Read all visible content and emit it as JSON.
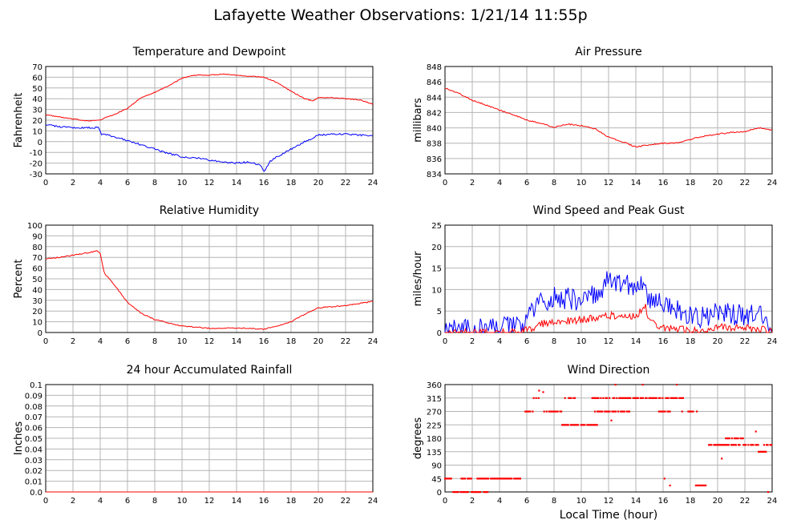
{
  "page_title": "Lafayette Weather Observations: 1/21/14 11:55p",
  "xlabel_common": "Local Time (hour)",
  "colors": {
    "red": "#ff0000",
    "blue": "#0000ff",
    "grid": "#b4b4b4",
    "frame": "#000000"
  },
  "chart_data": [
    {
      "id": "temperature",
      "type": "line",
      "title": "Temperature and Dewpoint",
      "xlabel": "",
      "ylabel": "Fahrenheit",
      "xlim": [
        0,
        24
      ],
      "ylim": [
        -30,
        70
      ],
      "xticks": [
        0,
        2,
        4,
        6,
        8,
        10,
        12,
        14,
        16,
        18,
        20,
        22,
        24
      ],
      "yticks": [
        -30,
        -20,
        -10,
        0,
        10,
        20,
        30,
        40,
        50,
        60,
        70
      ],
      "grid": true,
      "series": [
        {
          "color": "#ff0000",
          "noise": 0.4,
          "points": [
            [
              0,
              25
            ],
            [
              1,
              23
            ],
            [
              2,
              21
            ],
            [
              3,
              19.5
            ],
            [
              4,
              20
            ],
            [
              4.5,
              23
            ],
            [
              5,
              25
            ],
            [
              6,
              31
            ],
            [
              7,
              41
            ],
            [
              8,
              46
            ],
            [
              9,
              52
            ],
            [
              10,
              59
            ],
            [
              11,
              62
            ],
            [
              12,
              62
            ],
            [
              13,
              63
            ],
            [
              14,
              62
            ],
            [
              15,
              61
            ],
            [
              16,
              60
            ],
            [
              17,
              55
            ],
            [
              18,
              47
            ],
            [
              19,
              40
            ],
            [
              19.6,
              38
            ],
            [
              20,
              41
            ],
            [
              21,
              41
            ],
            [
              22,
              40
            ],
            [
              23,
              39
            ],
            [
              24,
              35
            ]
          ]
        },
        {
          "color": "#0000ff",
          "noise": 0.8,
          "points": [
            [
              0,
              16
            ],
            [
              1,
              14
            ],
            [
              2,
              13
            ],
            [
              3,
              13
            ],
            [
              3.9,
              13
            ],
            [
              4.1,
              7
            ],
            [
              5,
              5
            ],
            [
              6,
              1
            ],
            [
              7,
              -3
            ],
            [
              8,
              -7
            ],
            [
              9,
              -11
            ],
            [
              10,
              -14
            ],
            [
              11,
              -15
            ],
            [
              12,
              -17
            ],
            [
              13,
              -19
            ],
            [
              14,
              -20
            ],
            [
              15,
              -19
            ],
            [
              15.8,
              -22
            ],
            [
              16,
              -28
            ],
            [
              16.5,
              -18
            ],
            [
              17,
              -14
            ],
            [
              18,
              -7
            ],
            [
              19,
              0
            ],
            [
              20,
              6
            ],
            [
              21,
              7
            ],
            [
              22,
              7
            ],
            [
              23,
              6
            ],
            [
              24,
              6
            ]
          ]
        }
      ]
    },
    {
      "id": "pressure",
      "type": "line",
      "title": "Air Pressure",
      "xlabel": "",
      "ylabel": "millibars",
      "xlim": [
        0,
        24
      ],
      "ylim": [
        834,
        848
      ],
      "xticks": [
        0,
        2,
        4,
        6,
        8,
        10,
        12,
        14,
        16,
        18,
        20,
        22,
        24
      ],
      "yticks": [
        834,
        836,
        838,
        840,
        842,
        844,
        846,
        848
      ],
      "grid": true,
      "series": [
        {
          "color": "#ff0000",
          "noise": 0.08,
          "points": [
            [
              0,
              845.2
            ],
            [
              1,
              844.5
            ],
            [
              2,
              843.6
            ],
            [
              3,
              843.0
            ],
            [
              4,
              842.3
            ],
            [
              5,
              841.7
            ],
            [
              6,
              841.0
            ],
            [
              7,
              840.6
            ],
            [
              8,
              840.1
            ],
            [
              9,
              840.5
            ],
            [
              10,
              840.3
            ],
            [
              11,
              839.9
            ],
            [
              12,
              838.8
            ],
            [
              13,
              838.2
            ],
            [
              14,
              837.5
            ],
            [
              15,
              837.8
            ],
            [
              16,
              838.0
            ],
            [
              17,
              838.0
            ],
            [
              18,
              838.5
            ],
            [
              19,
              838.9
            ],
            [
              20,
              839.2
            ],
            [
              21,
              839.4
            ],
            [
              22,
              839.5
            ],
            [
              23,
              840.0
            ],
            [
              24,
              839.7
            ]
          ]
        }
      ]
    },
    {
      "id": "humidity",
      "type": "line",
      "title": "Relative Humidity",
      "xlabel": "",
      "ylabel": "Percent",
      "xlim": [
        0,
        24
      ],
      "ylim": [
        0,
        100
      ],
      "xticks": [
        0,
        2,
        4,
        6,
        8,
        10,
        12,
        14,
        16,
        18,
        20,
        22,
        24
      ],
      "yticks": [
        0,
        10,
        20,
        30,
        40,
        50,
        60,
        70,
        80,
        90,
        100
      ],
      "grid": true,
      "series": [
        {
          "color": "#ff0000",
          "noise": 0.5,
          "points": [
            [
              0,
              69
            ],
            [
              1,
              70
            ],
            [
              2,
              72
            ],
            [
              3,
              74
            ],
            [
              3.8,
              76
            ],
            [
              4,
              74
            ],
            [
              4.3,
              55
            ],
            [
              5,
              45
            ],
            [
              6,
              28
            ],
            [
              7,
              18
            ],
            [
              8,
              12
            ],
            [
              9,
              9
            ],
            [
              10,
              6
            ],
            [
              11,
              5
            ],
            [
              12,
              4
            ],
            [
              13,
              4
            ],
            [
              14,
              4
            ],
            [
              15,
              4
            ],
            [
              16,
              3
            ],
            [
              17,
              6
            ],
            [
              18,
              10
            ],
            [
              19,
              17
            ],
            [
              20,
              23
            ],
            [
              21,
              24
            ],
            [
              22,
              25
            ],
            [
              23,
              27
            ],
            [
              24,
              29
            ]
          ]
        }
      ]
    },
    {
      "id": "wind",
      "type": "line",
      "title": "Wind Speed and Peak Gust",
      "xlabel": "",
      "ylabel": "miles/hour",
      "xlim": [
        0,
        24
      ],
      "ylim": [
        0,
        25
      ],
      "xticks": [
        0,
        2,
        4,
        6,
        8,
        10,
        12,
        14,
        16,
        18,
        20,
        22,
        24
      ],
      "yticks": [
        0,
        5,
        10,
        15,
        20,
        25
      ],
      "grid": true,
      "series": [
        {
          "color": "#0000ff",
          "noise": 2.6,
          "points": [
            [
              0,
              0.5
            ],
            [
              2,
              0.5
            ],
            [
              4,
              1
            ],
            [
              5,
              1.5
            ],
            [
              6,
              2
            ],
            [
              6.3,
              5
            ],
            [
              7,
              7
            ],
            [
              8,
              8
            ],
            [
              9,
              8
            ],
            [
              10,
              7
            ],
            [
              11,
              9
            ],
            [
              11.8,
              11
            ],
            [
              12,
              13
            ],
            [
              13,
              11
            ],
            [
              14,
              11
            ],
            [
              14.8,
              10
            ],
            [
              15,
              7
            ],
            [
              16,
              7
            ],
            [
              17,
              5
            ],
            [
              18,
              4
            ],
            [
              19,
              3.5
            ],
            [
              20,
              5.5
            ],
            [
              21,
              4
            ],
            [
              22,
              4
            ],
            [
              23,
              4
            ],
            [
              24,
              2
            ]
          ]
        },
        {
          "color": "#ff0000",
          "noise": 0.9,
          "points": [
            [
              0,
              0
            ],
            [
              5.5,
              0
            ],
            [
              6.3,
              1
            ],
            [
              7,
              2
            ],
            [
              8,
              2.5
            ],
            [
              10,
              3
            ],
            [
              11,
              3.5
            ],
            [
              12,
              4
            ],
            [
              13,
              4
            ],
            [
              14,
              4
            ],
            [
              14.7,
              6
            ],
            [
              15,
              2.5
            ],
            [
              16,
              1
            ],
            [
              17,
              1
            ],
            [
              18,
              0.5
            ],
            [
              19,
              0.5
            ],
            [
              20,
              1.5
            ],
            [
              21,
              1
            ],
            [
              22,
              1
            ],
            [
              23,
              1
            ],
            [
              24,
              0
            ]
          ]
        }
      ]
    },
    {
      "id": "rainfall",
      "type": "line",
      "title": "24 hour Accumulated Rainfall",
      "xlabel": "",
      "ylabel": "Inches",
      "xlim": [
        0,
        24
      ],
      "ylim": [
        0,
        0.1
      ],
      "xticks": [
        0,
        2,
        4,
        6,
        8,
        10,
        12,
        14,
        16,
        18,
        20,
        22,
        24
      ],
      "yticks": [
        0.0,
        0.01,
        0.02,
        0.03,
        0.04,
        0.05,
        0.06,
        0.07,
        0.08,
        0.09,
        0.1
      ],
      "ytick_labels": [
        "0.0",
        "0.01",
        "0.02",
        "0.03",
        "0.04",
        "0.05",
        "0.06",
        "0.07",
        "0.08",
        "0.09",
        "0.1"
      ],
      "grid": true,
      "series": [
        {
          "color": "#ff0000",
          "noise": 0,
          "points": [
            [
              0,
              0
            ],
            [
              24,
              0
            ]
          ]
        }
      ]
    },
    {
      "id": "direction",
      "type": "scatter",
      "title": "Wind Direction",
      "xlabel": "Local Time (hour)",
      "ylabel": "degrees",
      "xlim": [
        0,
        24
      ],
      "ylim": [
        0,
        360
      ],
      "xticks": [
        0,
        2,
        4,
        6,
        8,
        10,
        12,
        14,
        16,
        18,
        20,
        22,
        24
      ],
      "yticks": [
        0,
        45,
        90,
        135,
        180,
        225,
        270,
        315,
        360
      ],
      "grid": true,
      "series": [
        {
          "color": "#ff0000",
          "segments": [
            [
              0.0,
              0.6,
              45
            ],
            [
              0.6,
              3.2,
              0
            ],
            [
              1.2,
              5.6,
              45
            ],
            [
              5.8,
              6.5,
              270
            ],
            [
              6.5,
              7.0,
              315
            ],
            [
              7.0,
              8.6,
              270
            ],
            [
              8.5,
              9.8,
              225
            ],
            [
              8.8,
              9.6,
              315
            ],
            [
              9.8,
              11.2,
              225
            ],
            [
              10.8,
              13.6,
              315
            ],
            [
              11.0,
              13.6,
              270
            ],
            [
              13.8,
              16.0,
              315
            ],
            [
              15.6,
              16.6,
              270
            ],
            [
              16.2,
              17.5,
              315
            ],
            [
              17.3,
              18.5,
              270
            ],
            [
              18.4,
              19.2,
              22
            ],
            [
              19.0,
              20.0,
              158
            ],
            [
              20.0,
              23.0,
              158
            ],
            [
              20.6,
              22.0,
              180
            ],
            [
              23.0,
              23.6,
              135
            ],
            [
              23.4,
              24.0,
              158
            ]
          ],
          "points": [
            [
              6.9,
              340
            ],
            [
              7.2,
              335
            ],
            [
              12.2,
              240
            ],
            [
              12.5,
              360
            ],
            [
              14.5,
              360
            ],
            [
              16.1,
              45
            ],
            [
              16.5,
              22
            ],
            [
              17.0,
              360
            ],
            [
              20.3,
              112
            ],
            [
              22.8,
              203
            ],
            [
              23.7,
              0
            ]
          ]
        }
      ]
    }
  ]
}
